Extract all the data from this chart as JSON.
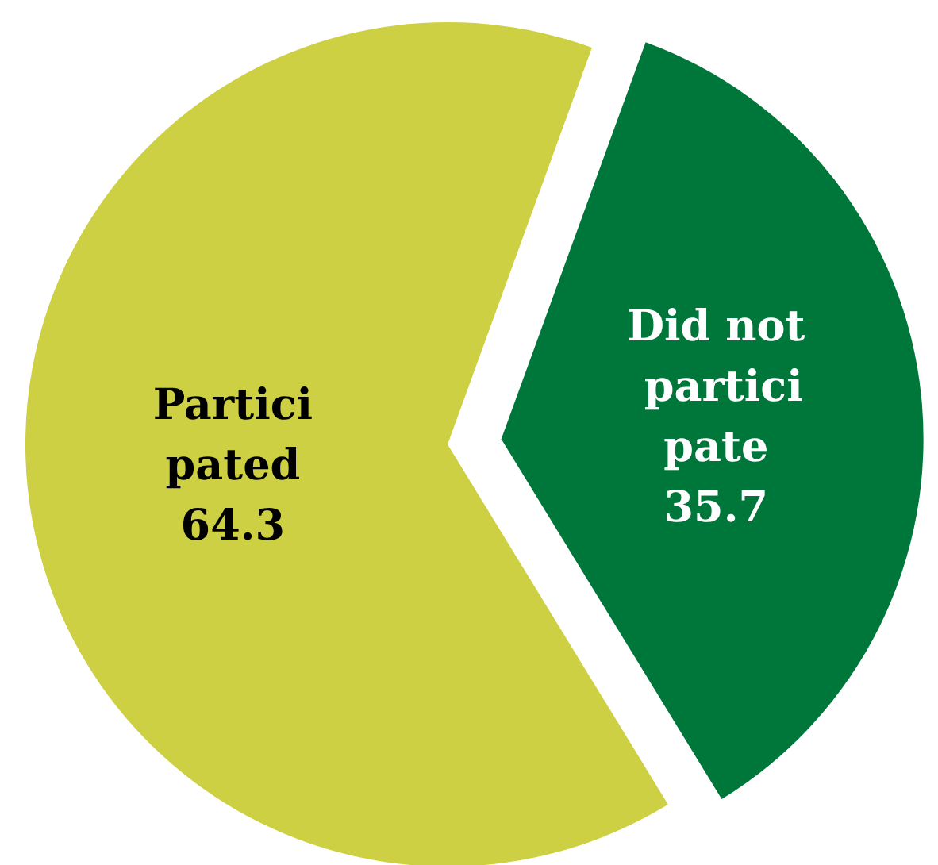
{
  "chart_data": {
    "type": "pie",
    "categories": [
      "Participated",
      "Did not participate"
    ],
    "values": [
      64.3,
      35.7
    ],
    "colors": [
      "#cdd042",
      "#00773a"
    ],
    "data_labels": true
  }
}
